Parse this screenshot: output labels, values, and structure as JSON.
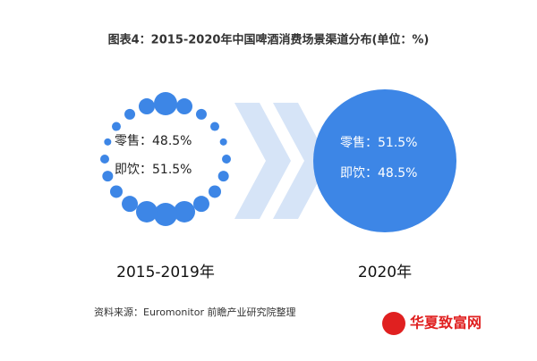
{
  "title": "图表4：2015-2020年中国啤酒消费场景渠道分布(单位：%)",
  "panels": [
    {
      "retail": "零售：48.5%",
      "on_premise": "即饮：51.5%",
      "period": "2015-2019年"
    },
    {
      "retail": "零售：51.5%",
      "on_premise": "即饮：48.5%",
      "period": "2020年"
    }
  ],
  "source": "资料来源：Euromonitor 前瞻产业研究院整理",
  "watermark": "华夏致富网"
}
